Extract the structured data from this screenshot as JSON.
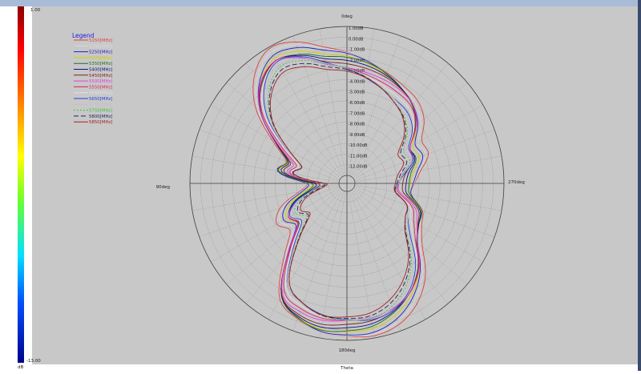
{
  "colorbar": {
    "max_label": "1.00",
    "min_label": "-13.00",
    "unit_label": "dB"
  },
  "colors": {
    "plot_bg": "#c8c8c8",
    "top_bar": "#a8bcd8",
    "grid": "#8a8a8a",
    "axis": "#404040",
    "legend_title": "#1a1ae0"
  },
  "chart_data": {
    "type": "polar",
    "title": "",
    "xlabel": "Theta",
    "angle_labels": [
      "0deg",
      "90deg",
      "180deg",
      "270deg"
    ],
    "radial_unit": "dB",
    "radial_range": [
      -13,
      1
    ],
    "radial_tick_labels": [
      "1.00dB",
      "0.00dB",
      "-1.00dB",
      "-2.00dB",
      "-3.00dB",
      "-4.00dB",
      "-5.00dB",
      "-6.00dB",
      "-7.00dB",
      "-8.00dB",
      "-9.00dB",
      "-10.00dB",
      "-11.00dB",
      "-12.00dB"
    ],
    "grid": true,
    "legend_title": "Legend",
    "legend_position": "top-left",
    "angles_deg": [
      0,
      10,
      20,
      30,
      40,
      50,
      60,
      70,
      80,
      90,
      100,
      110,
      120,
      130,
      140,
      150,
      160,
      170,
      180,
      190,
      200,
      210,
      220,
      230,
      240,
      250,
      260,
      270,
      280,
      290,
      300,
      310,
      320,
      330,
      340,
      350
    ],
    "base_pattern_db": [
      -2,
      -1.5,
      -0.5,
      0,
      -1,
      -3,
      -6,
      -8,
      -7.5,
      -10.5,
      -10,
      -8,
      -7,
      -7.5,
      -5,
      -1.5,
      -0.5,
      0,
      0,
      0,
      -0.5,
      -1.5,
      -3,
      -5,
      -6,
      -6.5,
      -8,
      -8,
      -7.5,
      -6.5,
      -6.5,
      -5,
      -4,
      -3.5,
      -3,
      -2.5
    ],
    "series": [
      {
        "name": "5150[MHz]",
        "color": "#e04040",
        "dash": "",
        "offset_db": 0.6,
        "ripple_db": 0.3,
        "phase": 0.0
      },
      {
        "name": "5200[MHz]",
        "color": "#d8d8d8",
        "dash": "",
        "offset_db": 0.4,
        "ripple_db": 0.25,
        "phase": 0.7
      },
      {
        "name": "5250[MHz]",
        "color": "#2020c0",
        "dash": "",
        "offset_db": 0.2,
        "ripple_db": 0.3,
        "phase": 1.3
      },
      {
        "name": "5300[MHz]",
        "color": "#d0d000",
        "dash": "",
        "offset_db": 0.0,
        "ripple_db": 0.2,
        "phase": 1.9
      },
      {
        "name": "5350[MHz]",
        "color": "#207020",
        "dash": "",
        "offset_db": -0.1,
        "ripple_db": 0.35,
        "phase": 2.5
      },
      {
        "name": "5400[MHz]",
        "color": "#101080",
        "dash": "",
        "offset_db": -0.2,
        "ripple_db": 0.25,
        "phase": 3.1
      },
      {
        "name": "5450[MHz]",
        "color": "#802020",
        "dash": "",
        "offset_db": -0.35,
        "ripple_db": 0.3,
        "phase": 3.7
      },
      {
        "name": "5500[MHz]",
        "color": "#e040e0",
        "dash": "",
        "offset_db": -0.5,
        "ripple_db": 0.4,
        "phase": 4.3
      },
      {
        "name": "5550[MHz]",
        "color": "#e02060",
        "dash": "",
        "offset_db": -0.6,
        "ripple_db": 0.3,
        "phase": 4.9
      },
      {
        "name": "5600[MHz]",
        "color": "#e0e0e0",
        "dash": "",
        "offset_db": -0.75,
        "ripple_db": 0.25,
        "phase": 5.5
      },
      {
        "name": "5650[MHz]",
        "color": "#2040e0",
        "dash": "",
        "offset_db": -0.9,
        "ripple_db": 0.35,
        "phase": 6.1
      },
      {
        "name": "5700[MHz]",
        "color": "#c0c0c0",
        "dash": "",
        "offset_db": -1.0,
        "ripple_db": 0.2,
        "phase": 0.4
      },
      {
        "name": "5750[MHz]",
        "color": "#40c040",
        "dash": "2,2",
        "offset_db": -1.15,
        "ripple_db": 0.3,
        "phase": 1.0
      },
      {
        "name": "5800[MHz]",
        "color": "#202060",
        "dash": "6,3",
        "offset_db": -1.3,
        "ripple_db": 0.25,
        "phase": 1.6
      },
      {
        "name": "5850[MHz]",
        "color": "#a02020",
        "dash": "",
        "offset_db": -1.45,
        "ripple_db": 0.3,
        "phase": 2.2
      }
    ]
  }
}
